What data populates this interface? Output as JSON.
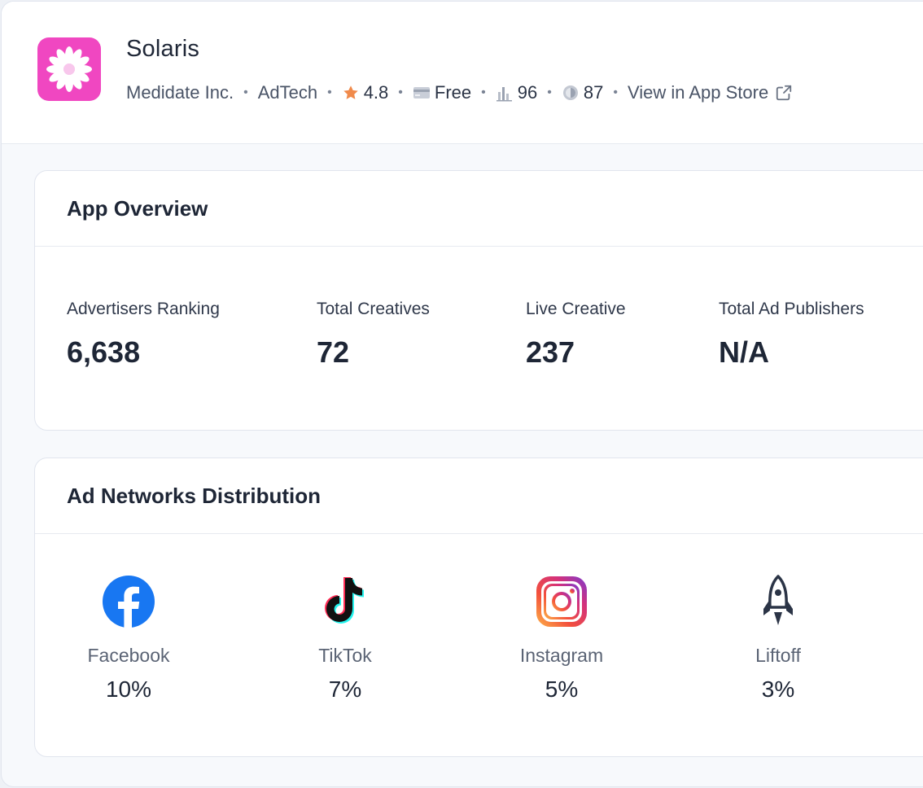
{
  "app": {
    "title": "Solaris",
    "developer": "Medidate Inc.",
    "category": "AdTech",
    "rating": "4.8",
    "price": "Free",
    "chart_score": "96",
    "other_score": "87",
    "store_link": "View in App Store",
    "icon_color": "#f047c1"
  },
  "overview": {
    "title": "App Overview",
    "stats": [
      {
        "label": "Advertisers Ranking",
        "value": "6,638"
      },
      {
        "label": "Total Creatives",
        "value": "72"
      },
      {
        "label": "Live Creative",
        "value": "237"
      },
      {
        "label": "Total Ad Publishers",
        "value": "N/A"
      }
    ]
  },
  "networks": {
    "title": "Ad Networks Distribution",
    "items": [
      {
        "name": "Facebook",
        "percent": "10%",
        "icon": "facebook-icon"
      },
      {
        "name": "TikTok",
        "percent": "7%",
        "icon": "tiktok-icon"
      },
      {
        "name": "Instagram",
        "percent": "5%",
        "icon": "instagram-icon"
      },
      {
        "name": "Liftoff",
        "percent": "3%",
        "icon": "liftoff-rocket-icon"
      }
    ]
  },
  "colors": {
    "rating_star": "#f08a4b",
    "facebook": "#1877f2"
  }
}
